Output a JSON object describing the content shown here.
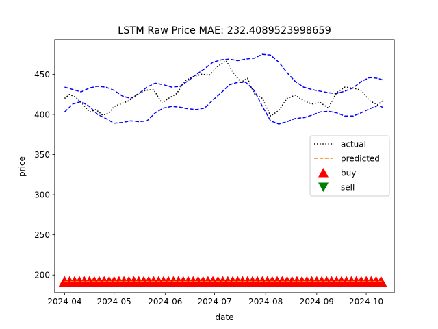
{
  "chart_data": {
    "type": "line",
    "title": "LSTM Raw Price MAE: 232.4089523998659",
    "xlabel": "date",
    "ylabel": "price",
    "xlim": [
      "2024-03-26",
      "2024-10-18"
    ],
    "ylim": [
      178,
      493
    ],
    "xticks": [
      "2024-04",
      "2024-05",
      "2024-06",
      "2024-07",
      "2024-08",
      "2024-09",
      "2024-10"
    ],
    "yticks": [
      200,
      250,
      300,
      350,
      400,
      450
    ],
    "legend": {
      "location": "center-right",
      "entries": [
        {
          "label": "actual",
          "kind": "dotted-line",
          "color": "#000000"
        },
        {
          "label": "predicted",
          "kind": "dashed-line",
          "color": "#ff7f0e"
        },
        {
          "label": "buy",
          "kind": "triangle-up",
          "color": "#ff0000"
        },
        {
          "label": "sell",
          "kind": "triangle-down",
          "color": "#008000"
        }
      ]
    },
    "series": [
      {
        "name": "actual",
        "color": "#000000",
        "style": "dotted",
        "x": [
          "2024-04-01",
          "2024-04-04",
          "2024-04-08",
          "2024-04-12",
          "2024-04-16",
          "2024-04-20",
          "2024-04-24",
          "2024-04-28",
          "2024-05-01",
          "2024-05-05",
          "2024-05-10",
          "2024-05-15",
          "2024-05-20",
          "2024-05-25",
          "2024-05-30",
          "2024-06-03",
          "2024-06-08",
          "2024-06-13",
          "2024-06-18",
          "2024-06-23",
          "2024-06-28",
          "2024-07-03",
          "2024-07-08",
          "2024-07-12",
          "2024-07-17",
          "2024-07-21",
          "2024-07-25",
          "2024-07-30",
          "2024-08-04",
          "2024-08-09",
          "2024-08-14",
          "2024-08-19",
          "2024-08-24",
          "2024-08-29",
          "2024-09-03",
          "2024-09-08",
          "2024-09-13",
          "2024-09-18",
          "2024-09-23",
          "2024-09-28",
          "2024-10-03",
          "2024-10-08",
          "2024-10-11"
        ],
        "values": [
          420,
          425,
          421,
          413,
          403,
          406,
          399,
          402,
          410,
          413,
          417,
          425,
          430,
          431,
          414,
          420,
          426,
          442,
          447,
          450,
          449,
          460,
          467,
          453,
          440,
          445,
          426,
          420,
          398,
          405,
          420,
          424,
          417,
          413,
          415,
          408,
          427,
          434,
          433,
          430,
          417,
          412,
          417
        ]
      },
      {
        "name": "upper band",
        "color": "#0000ff",
        "style": "dashed",
        "x": [
          "2024-04-01",
          "2024-04-06",
          "2024-04-11",
          "2024-04-16",
          "2024-04-21",
          "2024-04-26",
          "2024-05-01",
          "2024-05-06",
          "2024-05-11",
          "2024-05-16",
          "2024-05-21",
          "2024-05-26",
          "2024-05-31",
          "2024-06-05",
          "2024-06-10",
          "2024-06-15",
          "2024-06-20",
          "2024-06-25",
          "2024-06-30",
          "2024-07-05",
          "2024-07-10",
          "2024-07-15",
          "2024-07-20",
          "2024-07-25",
          "2024-07-30",
          "2024-08-04",
          "2024-08-09",
          "2024-08-14",
          "2024-08-19",
          "2024-08-24",
          "2024-08-29",
          "2024-09-03",
          "2024-09-08",
          "2024-09-13",
          "2024-09-18",
          "2024-09-23",
          "2024-09-28",
          "2024-10-03",
          "2024-10-08",
          "2024-10-11"
        ],
        "values": [
          434,
          431,
          428,
          433,
          435,
          434,
          430,
          423,
          420,
          426,
          434,
          439,
          437,
          434,
          435,
          442,
          450,
          457,
          465,
          468,
          469,
          467,
          469,
          470,
          475,
          474,
          465,
          452,
          441,
          434,
          431,
          429,
          427,
          426,
          429,
          433,
          441,
          446,
          445,
          443
        ]
      },
      {
        "name": "lower band",
        "color": "#0000ff",
        "style": "dashed",
        "x": [
          "2024-04-01",
          "2024-04-06",
          "2024-04-11",
          "2024-04-16",
          "2024-04-21",
          "2024-04-26",
          "2024-05-01",
          "2024-05-06",
          "2024-05-11",
          "2024-05-16",
          "2024-05-21",
          "2024-05-26",
          "2024-05-31",
          "2024-06-05",
          "2024-06-10",
          "2024-06-15",
          "2024-06-20",
          "2024-06-25",
          "2024-06-30",
          "2024-07-05",
          "2024-07-10",
          "2024-07-15",
          "2024-07-20",
          "2024-07-25",
          "2024-07-30",
          "2024-08-04",
          "2024-08-09",
          "2024-08-14",
          "2024-08-19",
          "2024-08-24",
          "2024-08-29",
          "2024-09-03",
          "2024-09-08",
          "2024-09-13",
          "2024-09-18",
          "2024-09-23",
          "2024-09-28",
          "2024-10-03",
          "2024-10-08",
          "2024-10-11"
        ],
        "values": [
          403,
          413,
          416,
          410,
          400,
          395,
          389,
          390,
          392,
          391,
          392,
          402,
          408,
          410,
          409,
          407,
          406,
          408,
          418,
          427,
          437,
          440,
          440,
          430,
          410,
          392,
          388,
          391,
          395,
          396,
          399,
          403,
          404,
          402,
          398,
          398,
          402,
          407,
          411,
          409
        ]
      },
      {
        "name": "predicted",
        "color": "#ff7f0e",
        "style": "dashed",
        "x": [
          "2024-04-01",
          "2024-10-11"
        ],
        "values": [
          192,
          192
        ]
      }
    ],
    "buy_markers": {
      "color": "#ff0000",
      "marker": "triangle-up",
      "value": 192,
      "start": "2024-04-01",
      "end": "2024-10-11",
      "step_days": 3
    },
    "sell_markers": []
  }
}
